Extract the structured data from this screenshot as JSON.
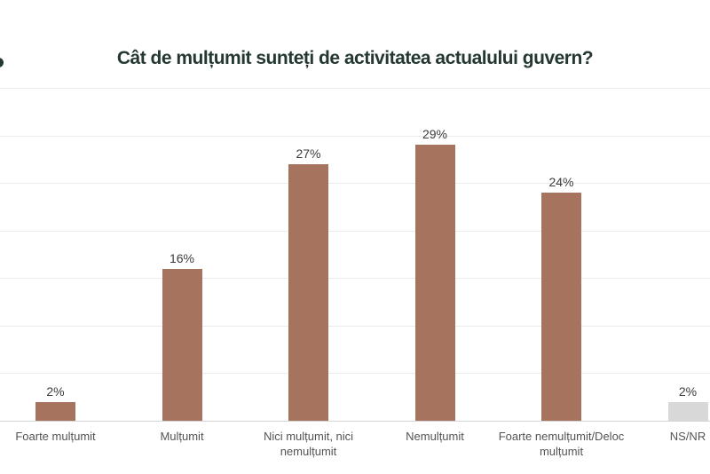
{
  "page": {
    "title": "Cât de mulțumit sunteți de activitatea actualului guvern?"
  },
  "chart_data": {
    "type": "bar",
    "title": "Cât de mulțumit sunteți de activitatea actualului guvern?",
    "categories": [
      "Foarte mulțumit",
      "Mulțumit",
      "Nici mulțumit, nici nemulțumit",
      "Nemulțumit",
      "Foarte nemulțumit/Deloc mulțumit",
      "NS/NR"
    ],
    "values": [
      2,
      16,
      27,
      29,
      24,
      2
    ],
    "value_labels": [
      "2%",
      "16%",
      "27%",
      "29%",
      "24%",
      "2%"
    ],
    "bar_colors": [
      "#a5735e",
      "#a5735e",
      "#a5735e",
      "#a5735e",
      "#a5735e",
      "#d8d8d8"
    ],
    "xlabel": "",
    "ylabel": "",
    "ylim": [
      0,
      35
    ],
    "gridline_step": 5,
    "grid": true,
    "legend": false,
    "y_axis_labels_visible": false
  },
  "colors": {
    "title": "#243831",
    "value_label": "#3b3b3b",
    "category_label": "#545454",
    "gridline": "#ebebeb",
    "axis_line": "#d4d4d4",
    "background": "#ffffff",
    "logo_fragment": "#223631"
  }
}
